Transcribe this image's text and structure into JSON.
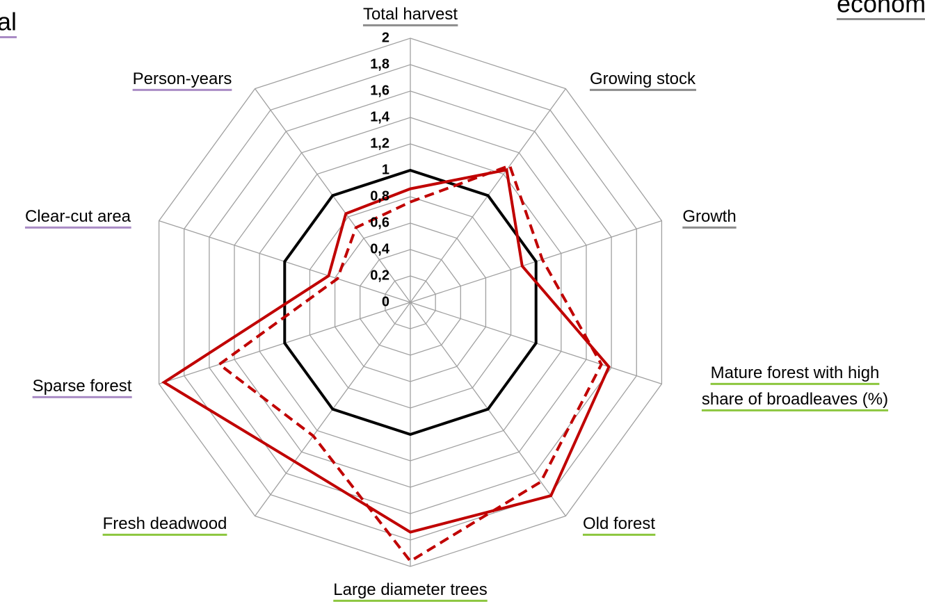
{
  "chart_data": {
    "type": "radar",
    "side_texts": {
      "left": "al",
      "right": "economic"
    },
    "side_colors": {
      "left": "#a98bc5",
      "right": "#8c8c8c"
    },
    "categories": [
      "Total harvest",
      "Growing stock",
      "Growth",
      "Mature forest with high\nshare of broadleaves (%)",
      "Old forest",
      "Large diameter trees",
      "Fresh deadwood",
      "Sparse forest",
      "Clear-cut area",
      "Person-years"
    ],
    "category_colors": [
      "#8c8c8c",
      "#8c8c8c",
      "#8c8c8c",
      "#8cc63e",
      "#8cc63e",
      "#8cc63e",
      "#8cc63e",
      "#a98bc5",
      "#a98bc5",
      "#a98bc5"
    ],
    "series": [
      {
        "color": "#000000",
        "dashed": false,
        "values": [
          1,
          1,
          1,
          1,
          1,
          1,
          1,
          1,
          1,
          1
        ]
      },
      {
        "color": "#c00000",
        "dashed": false,
        "values": [
          0.86,
          1.24,
          0.89,
          1.58,
          1.81,
          1.74,
          1.49,
          1.96,
          0.65,
          0.83
        ]
      },
      {
        "color": "#c00000",
        "dashed": true,
        "values": [
          0.76,
          1.28,
          1.05,
          1.52,
          1.68,
          1.96,
          1.25,
          1.52,
          0.58,
          0.7
        ]
      }
    ],
    "ylim": [
      0,
      2
    ],
    "yticks": [
      0,
      {
        "value": 0.2,
        "label": "0,2"
      },
      {
        "value": 0.4,
        "label": "0,4"
      },
      {
        "value": 0.6,
        "label": "0,6"
      },
      {
        "value": 0.8,
        "label": "0,8"
      },
      1,
      {
        "value": 1.2,
        "label": "1,2"
      },
      {
        "value": 1.4,
        "label": "1,4"
      },
      {
        "value": 1.6,
        "label": "1,6"
      },
      {
        "value": 1.8,
        "label": "1,8"
      },
      2
    ],
    "grid": true
  }
}
